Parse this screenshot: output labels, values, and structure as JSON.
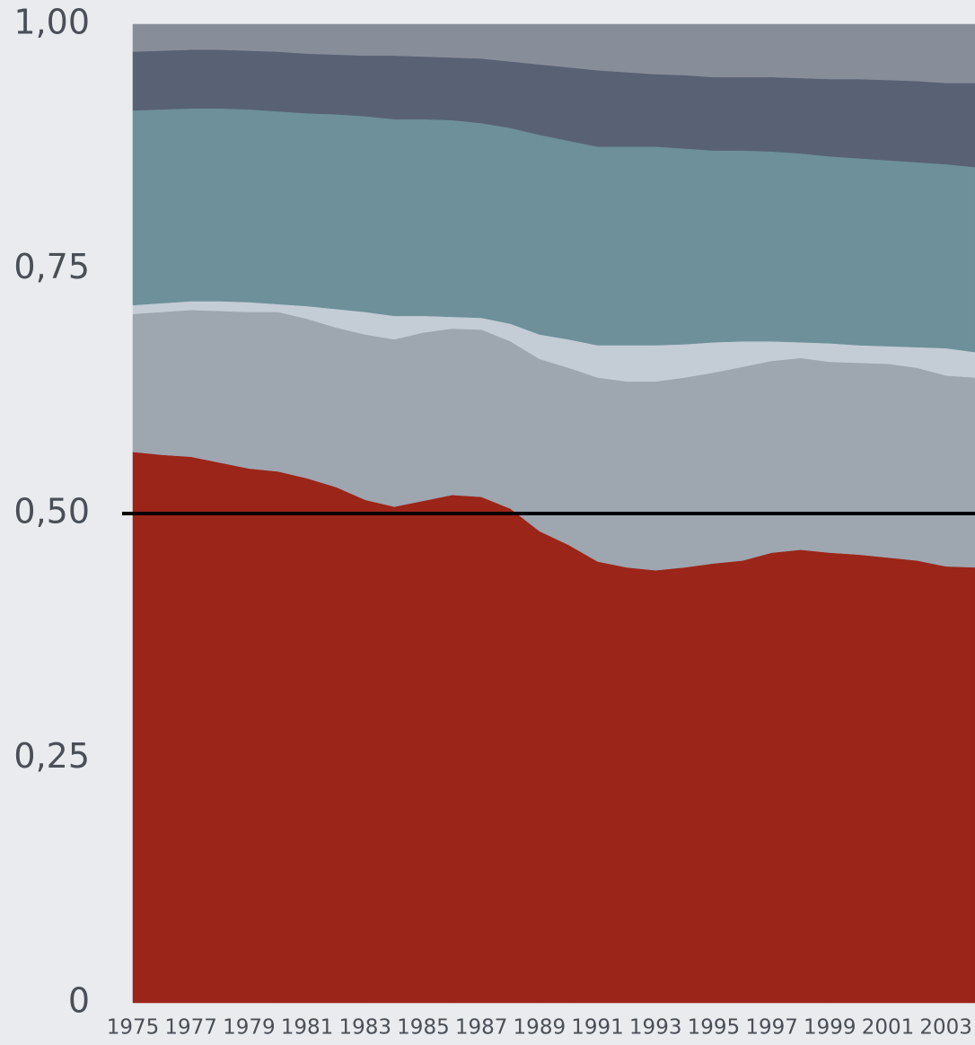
{
  "chart_data": {
    "type": "stacked_area",
    "x": [
      1975,
      1976,
      1977,
      1978,
      1979,
      1980,
      1981,
      1982,
      1983,
      1984,
      1985,
      1986,
      1987,
      1988,
      1989,
      1990,
      1991,
      1992,
      1993,
      1994,
      1995,
      1996,
      1997,
      1998,
      1999,
      2000,
      2001,
      2002,
      2003,
      2004
    ],
    "series": [
      {
        "color": "#9b2519",
        "values": [
          0.563,
          0.56,
          0.558,
          0.552,
          0.546,
          0.543,
          0.536,
          0.527,
          0.514,
          0.507,
          0.513,
          0.519,
          0.517,
          0.505,
          0.482,
          0.468,
          0.451,
          0.445,
          0.442,
          0.445,
          0.449,
          0.452,
          0.46,
          0.463,
          0.46,
          0.458,
          0.455,
          0.452,
          0.446,
          0.445
        ]
      },
      {
        "color": "#9ea6b0",
        "values": [
          0.141,
          0.146,
          0.15,
          0.155,
          0.16,
          0.163,
          0.163,
          0.163,
          0.169,
          0.171,
          0.172,
          0.17,
          0.171,
          0.171,
          0.176,
          0.181,
          0.188,
          0.19,
          0.193,
          0.194,
          0.195,
          0.198,
          0.196,
          0.196,
          0.195,
          0.196,
          0.198,
          0.197,
          0.195,
          0.194
        ]
      },
      {
        "color": "#c4ccd6",
        "values": [
          0.009,
          0.009,
          0.009,
          0.01,
          0.01,
          0.008,
          0.013,
          0.019,
          0.023,
          0.024,
          0.017,
          0.012,
          0.012,
          0.018,
          0.025,
          0.029,
          0.033,
          0.037,
          0.037,
          0.034,
          0.031,
          0.026,
          0.02,
          0.016,
          0.019,
          0.018,
          0.018,
          0.021,
          0.028,
          0.026
        ]
      },
      {
        "color": "#6d909a",
        "values": [
          0.199,
          0.198,
          0.197,
          0.197,
          0.197,
          0.197,
          0.197,
          0.199,
          0.2,
          0.201,
          0.201,
          0.201,
          0.199,
          0.2,
          0.204,
          0.203,
          0.203,
          0.203,
          0.203,
          0.2,
          0.196,
          0.195,
          0.194,
          0.193,
          0.191,
          0.191,
          0.19,
          0.189,
          0.188,
          0.189
        ]
      },
      {
        "color": "#596275",
        "values": [
          0.06,
          0.06,
          0.06,
          0.06,
          0.06,
          0.061,
          0.061,
          0.061,
          0.062,
          0.065,
          0.064,
          0.064,
          0.066,
          0.068,
          0.072,
          0.075,
          0.078,
          0.076,
          0.074,
          0.075,
          0.075,
          0.075,
          0.076,
          0.077,
          0.079,
          0.081,
          0.082,
          0.083,
          0.083,
          0.086
        ]
      },
      {
        "color": "#878e99",
        "values": [
          0.028,
          0.027,
          0.026,
          0.026,
          0.027,
          0.028,
          0.03,
          0.031,
          0.032,
          0.032,
          0.033,
          0.034,
          0.035,
          0.038,
          0.041,
          0.044,
          0.047,
          0.049,
          0.051,
          0.052,
          0.054,
          0.054,
          0.054,
          0.055,
          0.056,
          0.056,
          0.057,
          0.058,
          0.06,
          0.06
        ]
      }
    ],
    "xlim": [
      1975,
      2004
    ],
    "xticks": [
      1975,
      1977,
      1979,
      1981,
      1983,
      1985,
      1987,
      1989,
      1991,
      1993,
      1995,
      1997,
      1999,
      2001,
      2003
    ],
    "ylim": [
      0,
      1
    ],
    "yticks": [
      0,
      {
        "value": 0.25,
        "label": "0,25"
      },
      {
        "value": 0.5,
        "label": "0,50"
      },
      {
        "value": 0.75,
        "label": "0,75"
      },
      {
        "value": 1,
        "label": "1,00"
      }
    ],
    "reference_line": {
      "value": 0.5,
      "color": "#000000"
    },
    "grid": false
  }
}
